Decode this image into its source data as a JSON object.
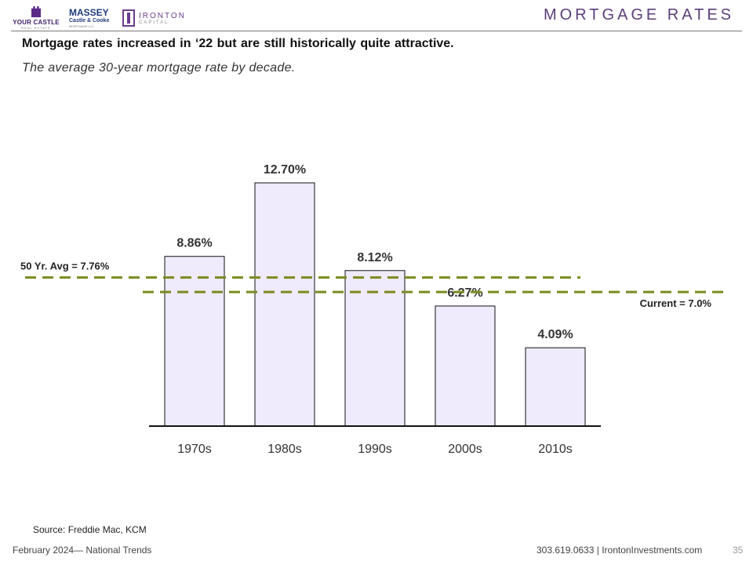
{
  "header": {
    "title": "MORTGAGE RATES",
    "logos": {
      "your_castle": {
        "name": "YOUR CASTLE",
        "sub": "REAL ESTATE"
      },
      "massey": {
        "line1": "MASSEY",
        "line2": "Castle & Cooke",
        "line3": "MORTGAGE LLC"
      },
      "ironton": {
        "line1": "IRONTON",
        "line2": "CAPITAL"
      }
    }
  },
  "headline": "Mortgage rates increased in ‘22 but are still historically  quite attractive.",
  "subtitle": "The average 30-year mortgage rate by decade.",
  "chart_data": {
    "type": "bar",
    "categories": [
      "1970s",
      "1980s",
      "1990s",
      "2000s",
      "2010s"
    ],
    "values": [
      8.86,
      12.7,
      8.12,
      6.27,
      4.09
    ],
    "value_labels": [
      "8.86%",
      "12.70%",
      "8.12%",
      "6.27%",
      "4.09%"
    ],
    "ylim": [
      0,
      12.7
    ],
    "grid": false,
    "bar_color": "#efeafc",
    "bar_border": "#111111",
    "reference_lines": [
      {
        "label": "50 Yr. Avg = 7.76%",
        "value": 7.76,
        "color": "#7b8b1f"
      },
      {
        "label": "Current = 7.0%",
        "value": 7.0,
        "color": "#7b8b1f"
      }
    ]
  },
  "source": "Source: Freddie Mac, KCM",
  "footer": {
    "left": "February 2024— National Trends",
    "right": "303.619.0633 | IrontonInvestments.com",
    "page_number": "35"
  }
}
